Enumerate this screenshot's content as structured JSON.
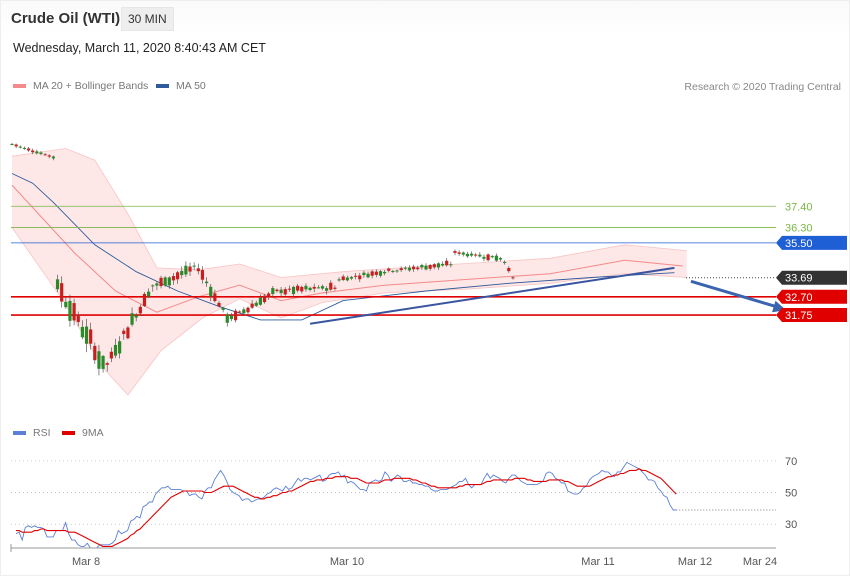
{
  "header": {
    "title": "Crude Oil (WTI)",
    "timeframe": "30 MIN",
    "timestamp": "Wednesday, March 11, 2020 8:40:43 AM CET"
  },
  "legend_price": [
    {
      "label": "MA 20 + Bollinger Bands",
      "color": "#f48a8a"
    },
    {
      "label": "MA 50",
      "color": "#2f5b9a"
    }
  ],
  "credit": "Research © 2020 Trading Central",
  "legend_rsi": [
    {
      "label": "RSI",
      "color": "#5b7fd6"
    },
    {
      "label": "9MA",
      "color": "#e00000"
    }
  ],
  "chart_data": [
    {
      "type": "candlestick",
      "title": "",
      "x_labels": [
        "Mar 8",
        "Mar 10",
        "Mar 11",
        "Mar 12",
        "Mar 24"
      ],
      "ylim": [
        26.3,
        42.4
      ],
      "levels": [
        {
          "label": "37.40",
          "value": 37.4,
          "color": "#7ab648",
          "role": "resistance"
        },
        {
          "label": "36.30",
          "value": 36.3,
          "color": "#7ab648",
          "role": "resistance"
        },
        {
          "label": "35.50",
          "value": 35.5,
          "color": "#1f5fd6",
          "role": "pivot"
        },
        {
          "label": "33.69",
          "value": 33.69,
          "color": "#333333",
          "role": "last price"
        },
        {
          "label": "32.70",
          "value": 32.7,
          "color": "#e00000",
          "role": "support"
        },
        {
          "label": "31.75",
          "value": 31.75,
          "color": "#e00000",
          "role": "support"
        }
      ],
      "segments": [
        {
          "n": 11,
          "from": 40.63,
          "to": 39.95,
          "wave": 0.1
        },
        {
          "n": 12,
          "from": 33.3,
          "to": 29.2,
          "wave": 0.8
        },
        {
          "n": 12,
          "from": 29.2,
          "to": 33.3,
          "wave": 0.6
        },
        {
          "n": 10,
          "from": 33.3,
          "to": 34.2,
          "wave": 0.4
        },
        {
          "n": 8,
          "from": 34.2,
          "to": 31.6,
          "wave": 0.4
        },
        {
          "n": 12,
          "from": 31.6,
          "to": 33.0,
          "wave": 0.3
        },
        {
          "n": 14,
          "from": 33.0,
          "to": 33.2,
          "wave": 0.3
        },
        {
          "n": 14,
          "from": 33.6,
          "to": 34.1,
          "wave": 0.2
        },
        {
          "n": 14,
          "from": 34.1,
          "to": 34.4,
          "wave": 0.2
        },
        {
          "n": 12,
          "from": 35.0,
          "to": 34.7,
          "wave": 0.2
        },
        {
          "n": 3,
          "from": 34.5,
          "to": 33.7,
          "wave": 0.1
        }
      ],
      "ma50": [
        [
          0,
          39.1
        ],
        [
          5,
          38.6
        ],
        [
          10,
          37.6
        ],
        [
          20,
          35.4
        ],
        [
          30,
          34.0
        ],
        [
          40,
          33.0
        ],
        [
          50,
          32.2
        ],
        [
          60,
          31.5
        ],
        [
          70,
          31.5
        ],
        [
          80,
          32.5
        ],
        [
          100,
          33.0
        ],
        [
          120,
          33.4
        ],
        [
          140,
          33.7
        ],
        [
          160,
          33.95
        ]
      ],
      "ma20": [
        [
          0,
          38.5
        ],
        [
          15,
          35.0
        ],
        [
          25,
          33.0
        ],
        [
          35,
          31.9
        ],
        [
          45,
          32.7
        ],
        [
          55,
          33.3
        ],
        [
          65,
          32.5
        ],
        [
          75,
          32.9
        ],
        [
          90,
          33.3
        ],
        [
          110,
          33.6
        ],
        [
          130,
          33.9
        ],
        [
          148,
          34.6
        ],
        [
          162,
          34.3
        ]
      ],
      "bb_upper": [
        [
          0,
          40.0
        ],
        [
          13,
          40.4
        ],
        [
          20,
          39.8
        ],
        [
          28,
          37.0
        ],
        [
          35,
          34.2
        ],
        [
          45,
          34.1
        ],
        [
          55,
          34.4
        ],
        [
          65,
          33.7
        ],
        [
          80,
          34.0
        ],
        [
          100,
          34.3
        ],
        [
          130,
          34.7
        ],
        [
          148,
          35.4
        ],
        [
          163,
          35.1
        ]
      ],
      "bb_lower": [
        [
          0,
          36.3
        ],
        [
          12,
          32.6
        ],
        [
          22,
          29.0
        ],
        [
          28,
          27.6
        ],
        [
          36,
          29.9
        ],
        [
          46,
          31.6
        ],
        [
          55,
          32.6
        ],
        [
          65,
          31.6
        ],
        [
          75,
          32.4
        ],
        [
          90,
          32.9
        ],
        [
          110,
          33.1
        ],
        [
          130,
          33.4
        ],
        [
          148,
          33.9
        ],
        [
          163,
          33.7
        ]
      ],
      "trend_line": {
        "from": [
          72,
          31.3
        ],
        "to": [
          160,
          34.2
        ],
        "color": "#3a55a0"
      },
      "forecast_arrow": {
        "from": [
          164,
          33.5
        ],
        "to": [
          187,
          32.0
        ],
        "color": "#3a63b0"
      }
    },
    {
      "type": "line",
      "title": "RSI",
      "ylim": [
        15,
        80
      ],
      "yticks": [
        "70",
        "50",
        "30"
      ],
      "series": [
        {
          "name": "RSI",
          "color": "#5b7fd6",
          "values": [
            24,
            25,
            20,
            28,
            29,
            28,
            29,
            28,
            28,
            27,
            22,
            22,
            22,
            26,
            26,
            26,
            31,
            24,
            20,
            20,
            17,
            16,
            16,
            18,
            15,
            15,
            15,
            17,
            17,
            17,
            17,
            18,
            20,
            26,
            24,
            25,
            26,
            32,
            33,
            35,
            34,
            41,
            42,
            44,
            44,
            49,
            51,
            53,
            53,
            54,
            52,
            52,
            52,
            52,
            51,
            51,
            48,
            49,
            49,
            47,
            46,
            51,
            53,
            53,
            58,
            61,
            64,
            61,
            57,
            52,
            50,
            49,
            48,
            45,
            46,
            46,
            44,
            45,
            46,
            46,
            47,
            49,
            50,
            52,
            53,
            52,
            51,
            54,
            52,
            53,
            56,
            59,
            57,
            59,
            59,
            58,
            59,
            60,
            61,
            57,
            58,
            61,
            62,
            62,
            63,
            60,
            61,
            56,
            57,
            56,
            54,
            52,
            52,
            51,
            56,
            57,
            58,
            57,
            58,
            63,
            61,
            57,
            59,
            61,
            60,
            57,
            57,
            58,
            56,
            56,
            55,
            55,
            54,
            54,
            52,
            51,
            51,
            52,
            52,
            52,
            53,
            54,
            55,
            57,
            57,
            59,
            55,
            53,
            55,
            55,
            55,
            59,
            62,
            59,
            61,
            60,
            59,
            57,
            56,
            59,
            61,
            61,
            59,
            57,
            56,
            55,
            55,
            55,
            55,
            56,
            57,
            62,
            63,
            62,
            59,
            58,
            56,
            56,
            51,
            50,
            49,
            49,
            50,
            53,
            54,
            58,
            60,
            61,
            62,
            64,
            63,
            63,
            61,
            60,
            63,
            63,
            66,
            69,
            68,
            67,
            66,
            65,
            63,
            61,
            58,
            58,
            57,
            53,
            51,
            48,
            47,
            42,
            39,
            39
          ]
        },
        {
          "name": "9MA",
          "color": "#e00000",
          "values": [
            26,
            26,
            25,
            25,
            25,
            25,
            26,
            26,
            27,
            27,
            26,
            26,
            26,
            26,
            26,
            26,
            26,
            25,
            25,
            25,
            24,
            23,
            22,
            21,
            20,
            19,
            18,
            17,
            16,
            16,
            16,
            16,
            17,
            18,
            19,
            20,
            21,
            23,
            24,
            26,
            27,
            29,
            31,
            33,
            35,
            37,
            39,
            41,
            43,
            45,
            47,
            48,
            49,
            50,
            51,
            51,
            51,
            51,
            51,
            51,
            51,
            50,
            50,
            50,
            51,
            52,
            53,
            54,
            54,
            54,
            54,
            53,
            52,
            51,
            50,
            49,
            48,
            47,
            47,
            46,
            46,
            47,
            47,
            48,
            48,
            49,
            50,
            50,
            51,
            51,
            52,
            53,
            54,
            55,
            56,
            57,
            57,
            58,
            58,
            58,
            59,
            59,
            59,
            60,
            60,
            60,
            60,
            60,
            59,
            59,
            59,
            58,
            57,
            56,
            56,
            56,
            56,
            56,
            57,
            58,
            58,
            58,
            59,
            59,
            59,
            59,
            59,
            59,
            58,
            58,
            57,
            56,
            56,
            55,
            54,
            54,
            53,
            53,
            53,
            53,
            53,
            53,
            53,
            54,
            54,
            55,
            55,
            55,
            55,
            55,
            55,
            56,
            57,
            57,
            58,
            58,
            58,
            58,
            58,
            58,
            58,
            59,
            59,
            59,
            59,
            58,
            58,
            57,
            57,
            57,
            57,
            57,
            58,
            58,
            58,
            58,
            58,
            57,
            57,
            56,
            55,
            54,
            54,
            54,
            54,
            54,
            55,
            56,
            57,
            58,
            59,
            60,
            60,
            61,
            61,
            62,
            62,
            63,
            64,
            64,
            64,
            65,
            64,
            64,
            63,
            62,
            61,
            60,
            59,
            57,
            55,
            53,
            51,
            49
          ]
        }
      ]
    }
  ]
}
